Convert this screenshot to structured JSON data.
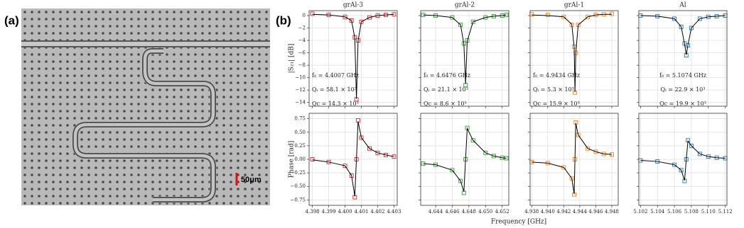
{
  "figure": {
    "panel_a_label": "(a)",
    "panel_b_label": "(b)",
    "scale_bar": "50μm",
    "xlabel": "Frequency [GHz]"
  },
  "chart_data": [
    {
      "type": "scatter",
      "title": "grAl-3",
      "ylabel": "|S₂₁| [dB]",
      "annotations": [
        "f₀ = 4.4007 GHz",
        "Qᵢ = 58.1 × 10³",
        "Qc = 14.3 × 10³"
      ],
      "xlim": [
        4.3978,
        4.4032
      ],
      "ylim": [
        -14.6,
        0.8
      ],
      "xticks": [
        4.398,
        4.399,
        4.4,
        4.401,
        4.402,
        4.403
      ],
      "yticks": [
        0,
        {
          "value": -2,
          "label": "−2"
        },
        {
          "value": -4,
          "label": "−4"
        },
        {
          "value": -6,
          "label": "−6"
        },
        {
          "value": -8,
          "label": "−8"
        },
        {
          "value": -10,
          "label": "−10"
        },
        {
          "value": -12,
          "label": "−12"
        },
        {
          "value": -14,
          "label": "−14"
        }
      ],
      "grid": true,
      "series": [
        {
          "type": "scatter",
          "color": "#d62728",
          "x": [
            4.398,
            4.399,
            4.4,
            4.4004,
            4.4006,
            4.4007,
            4.4008,
            4.401,
            4.4015,
            4.402,
            4.4025,
            4.403
          ],
          "values": [
            0.3,
            0.1,
            -0.2,
            -0.8,
            -3.5,
            -13.5,
            -4.0,
            -1.0,
            -0.3,
            0.0,
            0.1,
            0.2
          ]
        },
        {
          "type": "line",
          "color": "#000000",
          "x": [
            4.398,
            4.399,
            4.4,
            4.4004,
            4.4006,
            4.4007,
            4.4008,
            4.401,
            4.4015,
            4.402,
            4.4025,
            4.403
          ],
          "values": [
            0.2,
            0.1,
            -0.2,
            -0.8,
            -3.6,
            -13.4,
            -4.1,
            -1.0,
            -0.3,
            0.0,
            0.1,
            0.2
          ]
        }
      ]
    },
    {
      "type": "scatter",
      "title": "grAl-2",
      "annotations": [
        "f₀ = 4.6476 GHz",
        "Qᵢ = 21.1 × 10³",
        "Qc = 8.6 × 10³"
      ],
      "xlim": [
        4.6422,
        4.6528
      ],
      "ylim": [
        -14.6,
        0.8
      ],
      "xticks": [
        4.644,
        4.646,
        4.648,
        4.65,
        4.652
      ],
      "yticks": [
        0,
        -2,
        -4,
        -6,
        -8,
        -10,
        -12,
        -14
      ],
      "grid": true,
      "series": [
        {
          "type": "scatter",
          "color": "#2ca02c",
          "x": [
            4.6425,
            4.644,
            4.646,
            4.647,
            4.6474,
            4.6476,
            4.6478,
            4.6485,
            4.65,
            4.651,
            4.652,
            4.6525
          ],
          "values": [
            0.1,
            0.0,
            -0.3,
            -1.5,
            -4.5,
            -11.2,
            -4.0,
            -1.0,
            -0.3,
            -0.1,
            0.0,
            0.1
          ]
        },
        {
          "type": "line",
          "color": "#000000",
          "x": [
            4.6425,
            4.644,
            4.646,
            4.647,
            4.6474,
            4.6476,
            4.6478,
            4.6485,
            4.65,
            4.651,
            4.652,
            4.6525
          ],
          "values": [
            0.1,
            0.0,
            -0.3,
            -1.5,
            -4.6,
            -11.0,
            -4.1,
            -1.0,
            -0.3,
            -0.1,
            0.0,
            0.1
          ]
        }
      ]
    },
    {
      "type": "scatter",
      "title": "grAl-1",
      "annotations": [
        "f₀ = 4.9434 GHz",
        "Qᵢ = 5.3 × 10³",
        "Qc = 15.9 × 10³"
      ],
      "xlim": [
        4.9378,
        4.9488
      ],
      "ylim": [
        -14.6,
        0.8
      ],
      "xticks": [
        4.938,
        4.94,
        4.942,
        4.944,
        4.946,
        4.948
      ],
      "yticks": [
        0,
        -2,
        -4,
        -6,
        -8,
        -10,
        -12,
        -14
      ],
      "grid": true,
      "series": [
        {
          "type": "scatter",
          "color": "#ff7f0e",
          "x": [
            4.938,
            4.94,
            4.942,
            4.943,
            4.9433,
            4.9434,
            4.9435,
            4.9438,
            4.945,
            4.946,
            4.947,
            4.948
          ],
          "values": [
            0.2,
            0.1,
            -0.2,
            -1.5,
            -5.0,
            -12.4,
            -6.0,
            -1.5,
            -0.2,
            0.1,
            0.2,
            0.3
          ]
        },
        {
          "type": "line",
          "color": "#000000",
          "x": [
            4.938,
            4.94,
            4.942,
            4.943,
            4.9433,
            4.9434,
            4.9435,
            4.9438,
            4.945,
            4.946,
            4.947,
            4.948
          ],
          "values": [
            0.1,
            0.0,
            -0.2,
            -1.4,
            -5.1,
            -12.3,
            -6.1,
            -1.5,
            -0.2,
            0.1,
            0.2,
            0.2
          ]
        }
      ]
    },
    {
      "type": "scatter",
      "title": "Al",
      "annotations": [
        "f₀ = 5.1074 GHz",
        "Qᵢ = 22.9 × 10³",
        "Qc = 19.9 × 10³"
      ],
      "xlim": [
        5.1018,
        5.1122
      ],
      "ylim": [
        -14.6,
        0.8
      ],
      "xticks": [
        5.102,
        5.104,
        5.106,
        5.108,
        5.11,
        5.112
      ],
      "yticks": [
        0,
        -2,
        -4,
        -6,
        -8,
        -10,
        -12,
        -14
      ],
      "grid": true,
      "series": [
        {
          "type": "scatter",
          "color": "#1f77b4",
          "x": [
            5.102,
            5.104,
            5.106,
            5.1068,
            5.1072,
            5.1074,
            5.1076,
            5.108,
            5.109,
            5.11,
            5.111,
            5.112
          ],
          "values": [
            0.0,
            -0.1,
            -0.5,
            -1.8,
            -4.5,
            -6.4,
            -4.8,
            -2.0,
            -0.5,
            -0.2,
            -0.1,
            0.0
          ]
        },
        {
          "type": "line",
          "color": "#000000",
          "x": [
            5.102,
            5.104,
            5.106,
            5.1068,
            5.1072,
            5.1074,
            5.1076,
            5.108,
            5.109,
            5.11,
            5.111,
            5.112
          ],
          "values": [
            0.0,
            -0.1,
            -0.5,
            -1.8,
            -4.6,
            -6.3,
            -4.7,
            -2.0,
            -0.5,
            -0.2,
            -0.1,
            0.0
          ]
        }
      ]
    },
    {
      "type": "scatter",
      "ylabel": "Phase [rad]",
      "xlim": [
        4.3978,
        4.4032
      ],
      "ylim": [
        -0.85,
        0.85
      ],
      "xticks": [
        4.398,
        4.399,
        {
          "value": 4.4,
          "label": "4.400"
        },
        4.401,
        4.402,
        4.403
      ],
      "yticks": [
        0.75,
        {
          "value": 0.5,
          "label": "0.50"
        },
        0.25,
        {
          "value": 0,
          "label": "0.00"
        },
        {
          "value": -0.25,
          "label": "−0.25"
        },
        {
          "value": -0.5,
          "label": "−0.50"
        },
        {
          "value": -0.75,
          "label": "−0.75"
        }
      ],
      "grid": true,
      "series": [
        {
          "type": "scatter",
          "color": "#d62728",
          "x": [
            4.398,
            4.399,
            4.4,
            4.4004,
            4.4006,
            4.4007,
            4.4008,
            4.401,
            4.4015,
            4.402,
            4.4025,
            4.403
          ],
          "values": [
            0.0,
            -0.05,
            -0.12,
            -0.3,
            -0.7,
            0.0,
            0.72,
            0.4,
            0.2,
            0.12,
            0.08,
            0.05
          ]
        },
        {
          "type": "line",
          "color": "#000000",
          "x": [
            4.398,
            4.399,
            4.4,
            4.4004,
            4.4006,
            4.4007,
            4.4008,
            4.401,
            4.4015,
            4.402,
            4.4025,
            4.403
          ],
          "values": [
            -0.01,
            -0.05,
            -0.12,
            -0.3,
            -0.68,
            0.0,
            0.7,
            0.4,
            0.2,
            0.12,
            0.08,
            0.05
          ]
        }
      ]
    },
    {
      "type": "scatter",
      "xlim": [
        4.6422,
        4.6528
      ],
      "ylim": [
        -0.85,
        0.85
      ],
      "xticks": [
        4.644,
        4.646,
        4.648,
        {
          "value": 4.65,
          "label": "4.650"
        },
        4.652
      ],
      "yticks": [
        0.75,
        0.5,
        0.25,
        0,
        -0.25,
        -0.5,
        -0.75
      ],
      "grid": true,
      "series": [
        {
          "type": "scatter",
          "color": "#2ca02c",
          "x": [
            4.6425,
            4.644,
            4.646,
            4.647,
            4.6474,
            4.6476,
            4.6478,
            4.6485,
            4.65,
            4.651,
            4.652,
            4.6525
          ],
          "values": [
            -0.08,
            -0.1,
            -0.2,
            -0.4,
            -0.62,
            0.0,
            0.58,
            0.35,
            0.12,
            0.06,
            0.03,
            0.02
          ]
        },
        {
          "type": "line",
          "color": "#000000",
          "x": [
            4.6425,
            4.644,
            4.646,
            4.647,
            4.6474,
            4.6476,
            4.6478,
            4.6485,
            4.65,
            4.651,
            4.652,
            4.6525
          ],
          "values": [
            -0.08,
            -0.1,
            -0.2,
            -0.4,
            -0.6,
            0.0,
            0.57,
            0.35,
            0.12,
            0.06,
            0.03,
            0.02
          ]
        }
      ]
    },
    {
      "type": "scatter",
      "xlim": [
        4.9378,
        4.9488
      ],
      "ylim": [
        -0.85,
        0.85
      ],
      "xticks": [
        4.938,
        {
          "value": 4.94,
          "label": "4.940"
        },
        4.942,
        4.944,
        4.946,
        4.948
      ],
      "yticks": [
        0.75,
        0.5,
        0.25,
        0,
        -0.25,
        -0.5,
        -0.75
      ],
      "grid": true,
      "series": [
        {
          "type": "scatter",
          "color": "#ff7f0e",
          "x": [
            4.938,
            4.94,
            4.942,
            4.943,
            4.9433,
            4.9434,
            4.9435,
            4.9438,
            4.945,
            4.946,
            4.947,
            4.948
          ],
          "values": [
            -0.05,
            -0.07,
            -0.15,
            -0.35,
            -0.65,
            0.0,
            0.68,
            0.45,
            0.2,
            0.14,
            0.1,
            0.09
          ]
        },
        {
          "type": "line",
          "color": "#000000",
          "x": [
            4.938,
            4.94,
            4.942,
            4.943,
            4.9433,
            4.9434,
            4.9435,
            4.9438,
            4.945,
            4.946,
            4.947,
            4.948
          ],
          "values": [
            -0.05,
            -0.07,
            -0.15,
            -0.35,
            -0.64,
            0.0,
            0.67,
            0.45,
            0.2,
            0.14,
            0.1,
            0.09
          ]
        }
      ]
    },
    {
      "type": "scatter",
      "xlim": [
        5.1018,
        5.1122
      ],
      "ylim": [
        -0.85,
        0.85
      ],
      "xticks": [
        5.102,
        5.104,
        5.106,
        5.108,
        {
          "value": 5.11,
          "label": "5.110"
        },
        5.112
      ],
      "yticks": [
        0.75,
        0.5,
        0.25,
        0,
        -0.25,
        -0.5,
        -0.75
      ],
      "grid": true,
      "series": [
        {
          "type": "scatter",
          "color": "#1f77b4",
          "x": [
            5.102,
            5.104,
            5.106,
            5.1068,
            5.1072,
            5.1074,
            5.1076,
            5.108,
            5.109,
            5.11,
            5.111,
            5.112
          ],
          "values": [
            -0.02,
            -0.04,
            -0.1,
            -0.2,
            -0.4,
            0.0,
            0.35,
            0.25,
            0.1,
            0.05,
            0.03,
            0.02
          ]
        },
        {
          "type": "line",
          "color": "#000000",
          "x": [
            5.102,
            5.104,
            5.106,
            5.1068,
            5.1072,
            5.1074,
            5.1076,
            5.108,
            5.109,
            5.11,
            5.111,
            5.112
          ],
          "values": [
            -0.02,
            -0.04,
            -0.1,
            -0.2,
            -0.39,
            0.0,
            0.34,
            0.25,
            0.1,
            0.05,
            0.03,
            0.02
          ]
        }
      ]
    }
  ]
}
